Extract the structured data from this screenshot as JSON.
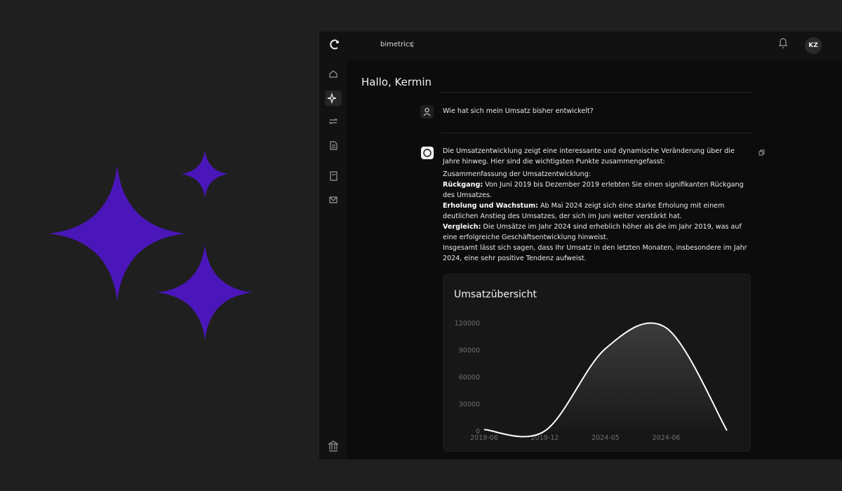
{
  "header": {
    "workspace": "bimetrics",
    "avatar": "KZ"
  },
  "greeting": "Hallo, Kermin",
  "question": "Wie hat sich mein Umsatz bisher entwickelt?",
  "answer": {
    "intro": "Die Umsatzentwicklung zeigt eine interessante und dynamische Veränderung über die Jahre hinweg. Hier sind die wichtigsten Punkte zusammengefasst:",
    "summary_heading": "Zusammenfassung der Umsatzentwicklung:",
    "points": [
      {
        "label": "Rückgang:",
        "text": "Von Juni 2019 bis Dezember 2019 erlebten Sie einen signifikanten Rückgang des Umsatzes."
      },
      {
        "label": "Erholung und Wachstum:",
        "text": "Ab Mai 2024 zeigt sich eine starke Erholung mit einem deutlichen Anstieg des Umsatzes, der sich im Juni weiter verstärkt hat."
      },
      {
        "label": "Vergleich:",
        "text": "Die Umsätze im Jahr 2024 sind erheblich höher als die im Jahr 2019, was auf eine erfolgreiche Geschäftsentwicklung hinweist."
      }
    ],
    "conclusion": "Insgesamt lässt sich sagen, dass Ihr Umsatz in den letzten Monaten, insbesondere im Jahr 2024, eine sehr positive Tendenz aufweist."
  },
  "chart_data": {
    "type": "line",
    "title": "Umsatzübersicht",
    "categories": [
      "2019-06",
      "2019-12",
      "2024-05",
      "2024-06",
      null
    ],
    "values": [
      2000,
      500,
      92000,
      115000,
      1000
    ],
    "color": "#ffffff",
    "ylim": [
      0,
      120000
    ],
    "yticks": [
      0,
      30000,
      60000,
      90000,
      120000
    ],
    "grid": false
  }
}
